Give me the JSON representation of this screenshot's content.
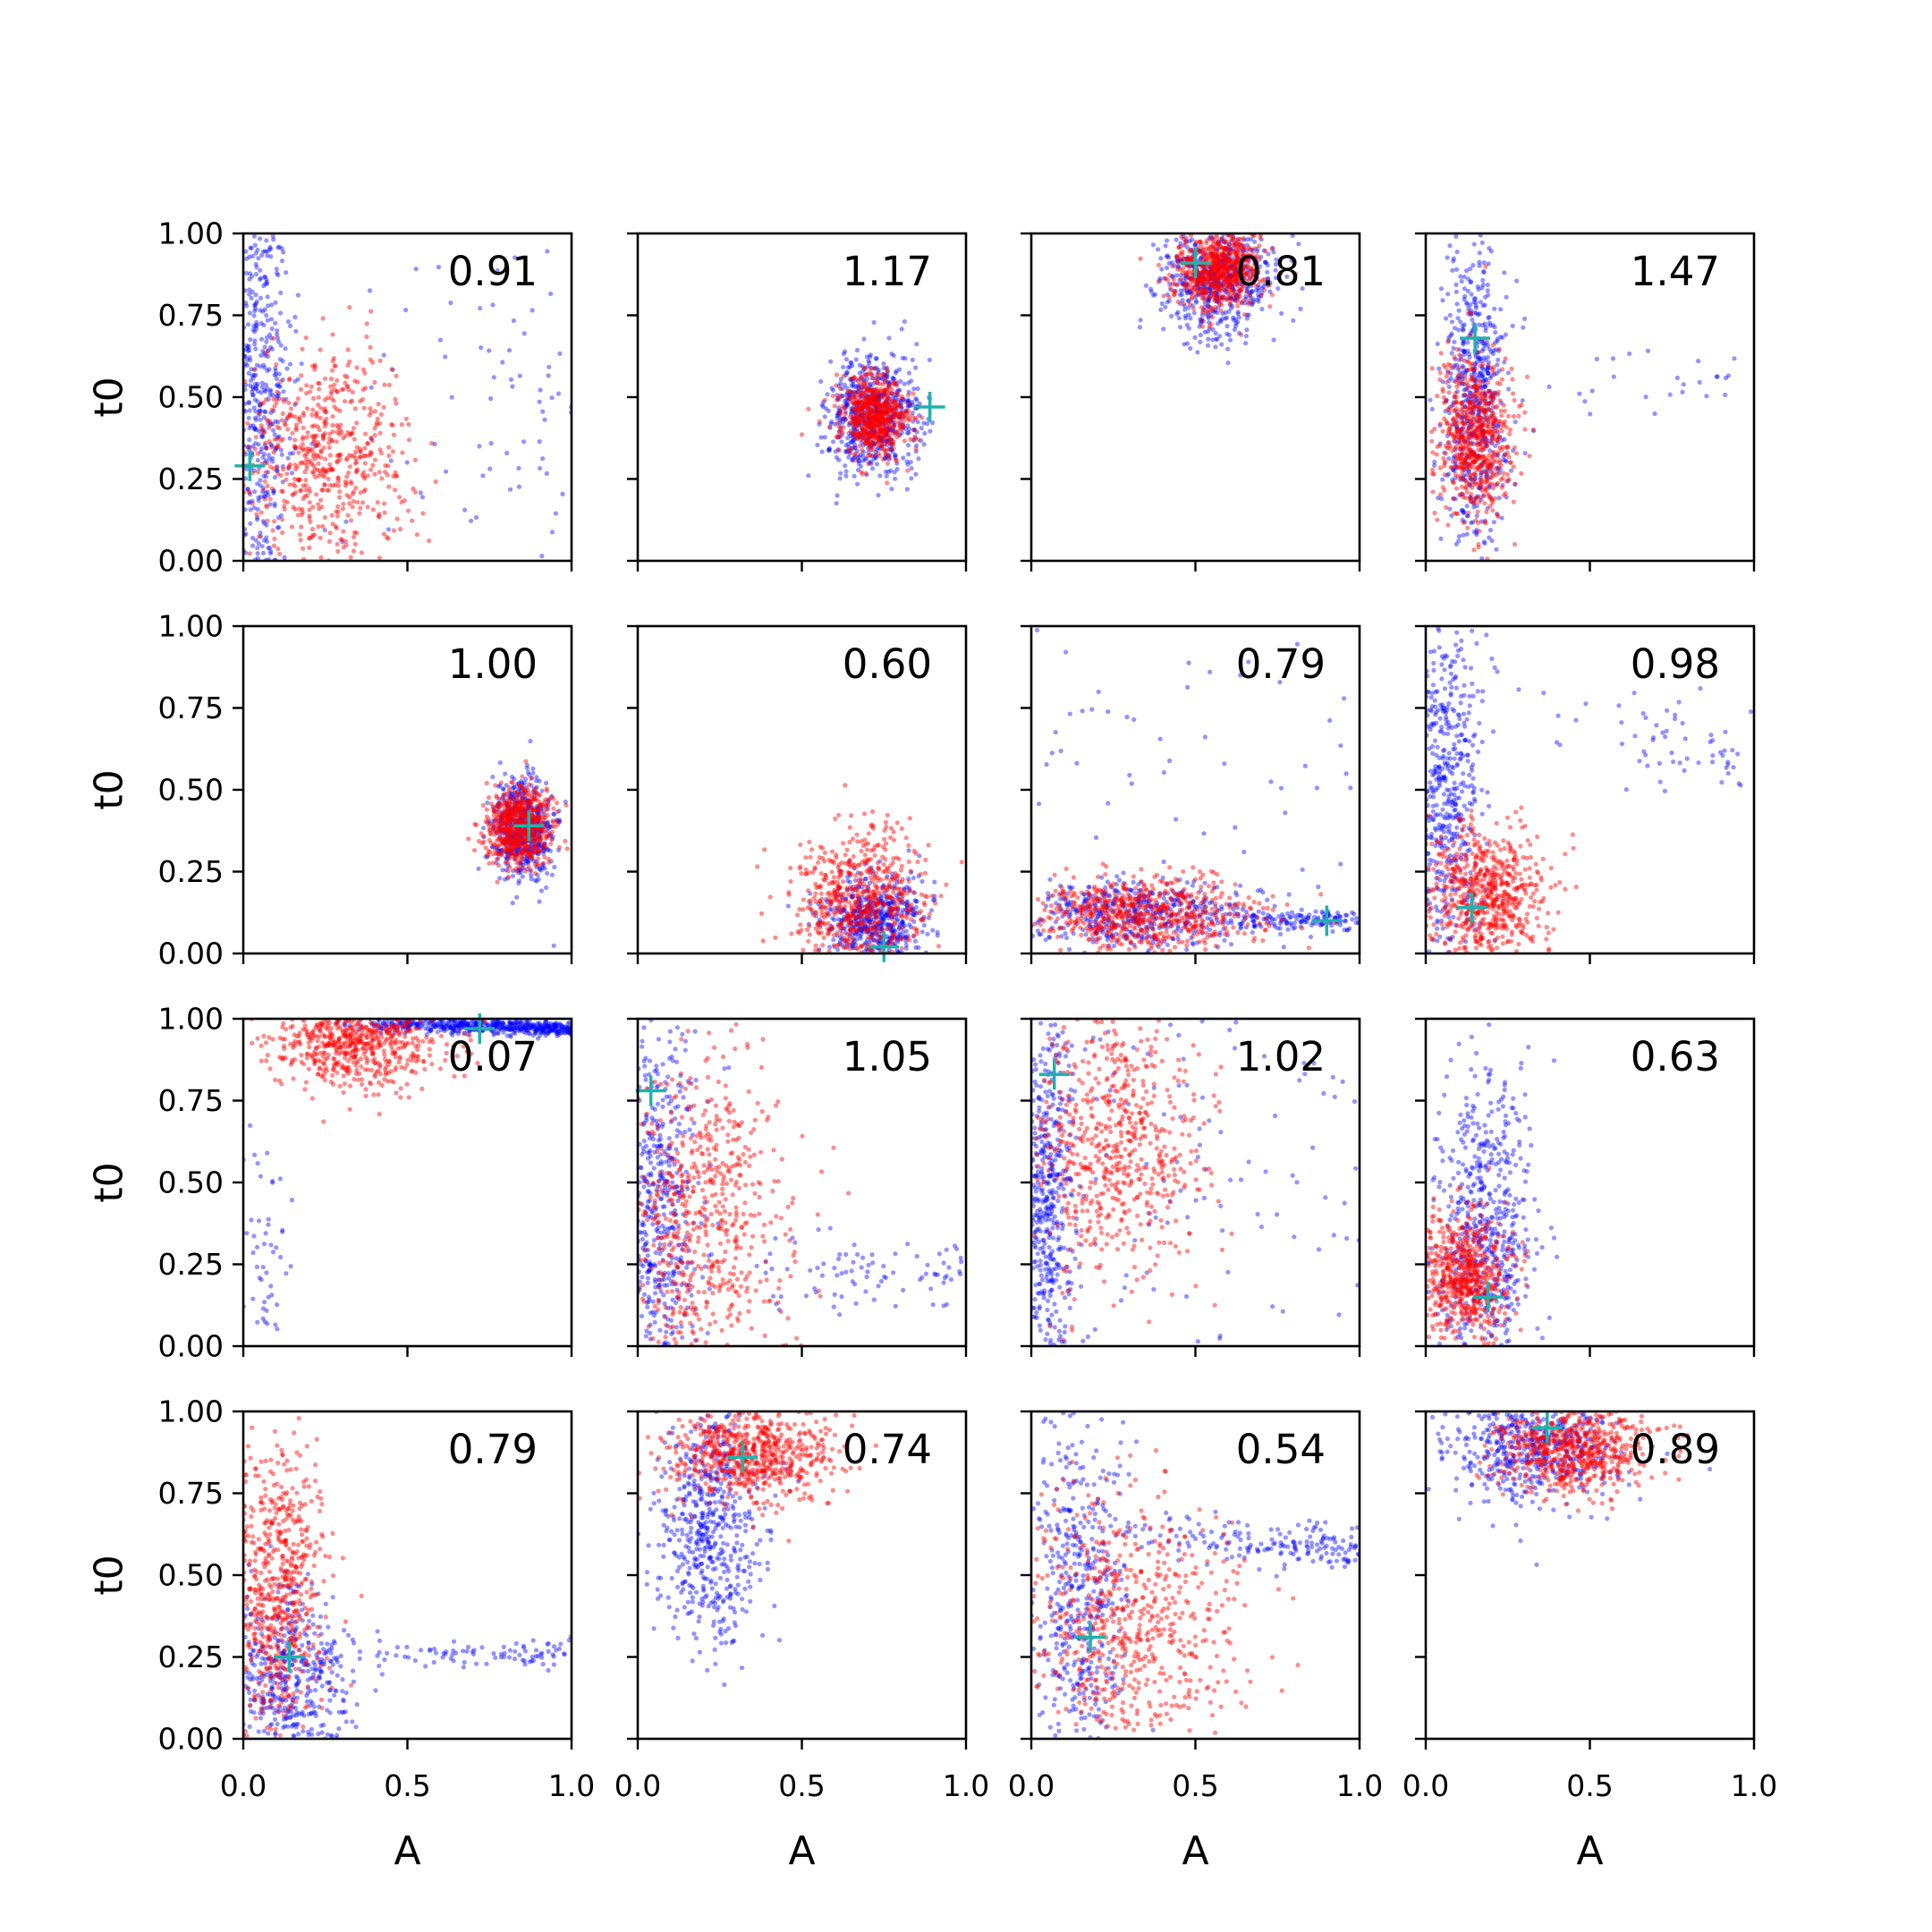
{
  "chart_data": {
    "type": "scatter",
    "layout": "4x4 grid of scatter subplots",
    "xlabel": "A",
    "ylabel": "t0",
    "xlim": [
      0.0,
      1.0
    ],
    "ylim": [
      0.0,
      1.0
    ],
    "xticks": [
      "0.0",
      "0.5",
      "1.0"
    ],
    "yticks": [
      "0.00",
      "0.25",
      "0.50",
      "0.75",
      "1.00"
    ],
    "grid": false,
    "legend": "none",
    "colors": {
      "series_blue": "#0000ff",
      "series_red": "#ff0000",
      "marker": "#20b2aa",
      "axes": "#000000"
    },
    "series": [
      {
        "color": "blue"
      },
      {
        "color": "red"
      }
    ],
    "marker_style": "plus",
    "panels": [
      {
        "row": 0,
        "col": 0,
        "label": "0.91",
        "marker": [
          0.02,
          0.29
        ],
        "blue": {
          "cluster": {
            "cx": 0.05,
            "cy": 0.5,
            "sx": 0.05,
            "sy": 0.35,
            "n": 520
          },
          "tail": {
            "x0": 0.05,
            "y0": 0.6,
            "x1": 1.0,
            "y1": 0.4,
            "spread": 0.35,
            "n": 80
          }
        },
        "red": {
          "cluster": {
            "cx": 0.25,
            "cy": 0.32,
            "sx": 0.13,
            "sy": 0.17,
            "n": 620
          }
        }
      },
      {
        "row": 0,
        "col": 1,
        "label": "1.17",
        "marker": [
          0.89,
          0.47
        ],
        "blue": {
          "cluster": {
            "cx": 0.72,
            "cy": 0.44,
            "sx": 0.07,
            "sy": 0.09,
            "n": 650
          }
        },
        "red": {
          "cluster": {
            "cx": 0.72,
            "cy": 0.44,
            "sx": 0.05,
            "sy": 0.06,
            "n": 650
          }
        }
      },
      {
        "row": 0,
        "col": 2,
        "label": "0.81",
        "marker": [
          0.5,
          0.91
        ],
        "blue": {
          "cluster": {
            "cx": 0.56,
            "cy": 0.86,
            "sx": 0.09,
            "sy": 0.09,
            "n": 600
          }
        },
        "red": {
          "cluster": {
            "cx": 0.57,
            "cy": 0.89,
            "sx": 0.07,
            "sy": 0.06,
            "n": 700
          }
        }
      },
      {
        "row": 0,
        "col": 3,
        "label": "1.47",
        "marker": [
          0.15,
          0.68
        ],
        "blue": {
          "cluster": {
            "cx": 0.15,
            "cy": 0.5,
            "sx": 0.05,
            "sy": 0.25,
            "n": 600
          },
          "tail": {
            "x0": 0.2,
            "y0": 0.5,
            "x1": 0.95,
            "y1": 0.55,
            "spread": 0.05,
            "n": 25
          }
        },
        "red": {
          "cluster": {
            "cx": 0.15,
            "cy": 0.38,
            "sx": 0.06,
            "sy": 0.12,
            "n": 650
          }
        }
      },
      {
        "row": 1,
        "col": 0,
        "label": "1.00",
        "marker": [
          0.87,
          0.39
        ],
        "blue": {
          "cluster": {
            "cx": 0.85,
            "cy": 0.38,
            "sx": 0.05,
            "sy": 0.08,
            "n": 550
          }
        },
        "red": {
          "cluster": {
            "cx": 0.84,
            "cy": 0.39,
            "sx": 0.05,
            "sy": 0.06,
            "n": 650
          }
        }
      },
      {
        "row": 1,
        "col": 1,
        "label": "0.60",
        "marker": [
          0.75,
          0.02
        ],
        "blue": {
          "cluster": {
            "cx": 0.72,
            "cy": 0.1,
            "sx": 0.08,
            "sy": 0.07,
            "n": 550
          }
        },
        "red": {
          "cluster": {
            "cx": 0.68,
            "cy": 0.16,
            "sx": 0.1,
            "sy": 0.11,
            "n": 650
          }
        }
      },
      {
        "row": 1,
        "col": 2,
        "label": "0.79",
        "marker": [
          0.9,
          0.1
        ],
        "blue": {
          "cluster": {
            "cx": 0.3,
            "cy": 0.12,
            "sx": 0.2,
            "sy": 0.05,
            "n": 500
          },
          "tail": {
            "x0": 0.4,
            "y0": 0.1,
            "x1": 1.0,
            "y1": 0.1,
            "spread": 0.015,
            "n": 140
          },
          "scatter": {
            "n": 60
          }
        },
        "red": {
          "cluster": {
            "cx": 0.35,
            "cy": 0.12,
            "sx": 0.16,
            "sy": 0.06,
            "n": 650
          }
        }
      },
      {
        "row": 1,
        "col": 3,
        "label": "0.98",
        "marker": [
          0.14,
          0.14
        ],
        "blue": {
          "cluster": {
            "cx": 0.06,
            "cy": 0.45,
            "sx": 0.06,
            "sy": 0.3,
            "n": 550
          },
          "tail": {
            "x0": 0.3,
            "y0": 0.65,
            "x1": 1.0,
            "y1": 0.65,
            "spread": 0.08,
            "n": 60
          }
        },
        "red": {
          "cluster": {
            "cx": 0.18,
            "cy": 0.18,
            "sx": 0.09,
            "sy": 0.1,
            "n": 650
          }
        }
      },
      {
        "row": 2,
        "col": 0,
        "label": "0.07",
        "marker": [
          0.72,
          0.97
        ],
        "blue": {
          "cluster": {
            "cx": 0.07,
            "cy": 0.25,
            "sx": 0.04,
            "sy": 0.2,
            "n": 60
          },
          "tail": {
            "x0": 0.25,
            "y0": 0.99,
            "x1": 1.0,
            "y1": 0.97,
            "spread": 0.012,
            "n": 550
          }
        },
        "red": {
          "cluster": {
            "cx": 0.35,
            "cy": 0.93,
            "sx": 0.13,
            "sy": 0.07,
            "n": 650
          }
        }
      },
      {
        "row": 2,
        "col": 1,
        "label": "1.05",
        "marker": [
          0.04,
          0.78
        ],
        "blue": {
          "cluster": {
            "cx": 0.06,
            "cy": 0.4,
            "sx": 0.06,
            "sy": 0.3,
            "n": 550
          },
          "tail": {
            "x0": 0.1,
            "y0": 0.25,
            "x1": 1.0,
            "y1": 0.22,
            "spread": 0.06,
            "n": 90
          }
        },
        "red": {
          "cluster": {
            "cx": 0.2,
            "cy": 0.4,
            "sx": 0.13,
            "sy": 0.25,
            "n": 650
          }
        }
      },
      {
        "row": 2,
        "col": 2,
        "label": "1.02",
        "marker": [
          0.07,
          0.83
        ],
        "blue": {
          "cluster": {
            "cx": 0.05,
            "cy": 0.45,
            "sx": 0.04,
            "sy": 0.3,
            "n": 500
          },
          "scatter": {
            "n": 110
          }
        },
        "red": {
          "cluster": {
            "cx": 0.25,
            "cy": 0.62,
            "sx": 0.14,
            "sy": 0.2,
            "n": 650
          }
        }
      },
      {
        "row": 2,
        "col": 3,
        "label": "0.63",
        "marker": [
          0.19,
          0.15
        ],
        "blue": {
          "cluster": {
            "cx": 0.18,
            "cy": 0.35,
            "sx": 0.07,
            "sy": 0.25,
            "n": 600
          }
        },
        "red": {
          "cluster": {
            "cx": 0.12,
            "cy": 0.22,
            "sx": 0.07,
            "sy": 0.1,
            "n": 650
          }
        }
      },
      {
        "row": 3,
        "col": 0,
        "label": "0.79",
        "marker": [
          0.14,
          0.25
        ],
        "blue": {
          "cluster": {
            "cx": 0.14,
            "cy": 0.15,
            "sx": 0.1,
            "sy": 0.15,
            "n": 550
          },
          "tail": {
            "x0": 0.3,
            "y0": 0.26,
            "x1": 1.0,
            "y1": 0.26,
            "spread": 0.02,
            "n": 90
          }
        },
        "red": {
          "cluster": {
            "cx": 0.1,
            "cy": 0.45,
            "sx": 0.07,
            "sy": 0.22,
            "n": 650
          }
        }
      },
      {
        "row": 3,
        "col": 1,
        "label": "0.74",
        "marker": [
          0.32,
          0.86
        ],
        "blue": {
          "cluster": {
            "cx": 0.22,
            "cy": 0.65,
            "sx": 0.08,
            "sy": 0.18,
            "n": 550
          }
        },
        "red": {
          "cluster": {
            "cx": 0.35,
            "cy": 0.87,
            "sx": 0.12,
            "sy": 0.07,
            "n": 650
          }
        }
      },
      {
        "row": 3,
        "col": 2,
        "label": "0.54",
        "marker": [
          0.18,
          0.31
        ],
        "blue": {
          "cluster": {
            "cx": 0.15,
            "cy": 0.45,
            "sx": 0.07,
            "sy": 0.25,
            "n": 450
          },
          "tail": {
            "x0": 0.2,
            "y0": 0.64,
            "x1": 1.0,
            "y1": 0.58,
            "spread": 0.035,
            "n": 180
          }
        },
        "red": {
          "cluster": {
            "cx": 0.3,
            "cy": 0.35,
            "sx": 0.17,
            "sy": 0.2,
            "n": 650
          }
        }
      },
      {
        "row": 3,
        "col": 3,
        "label": "0.89",
        "marker": [
          0.37,
          0.95
        ],
        "blue": {
          "cluster": {
            "cx": 0.32,
            "cy": 0.88,
            "sx": 0.13,
            "sy": 0.08,
            "n": 500
          }
        },
        "red": {
          "cluster": {
            "cx": 0.45,
            "cy": 0.88,
            "sx": 0.12,
            "sy": 0.07,
            "n": 650
          }
        }
      }
    ]
  }
}
